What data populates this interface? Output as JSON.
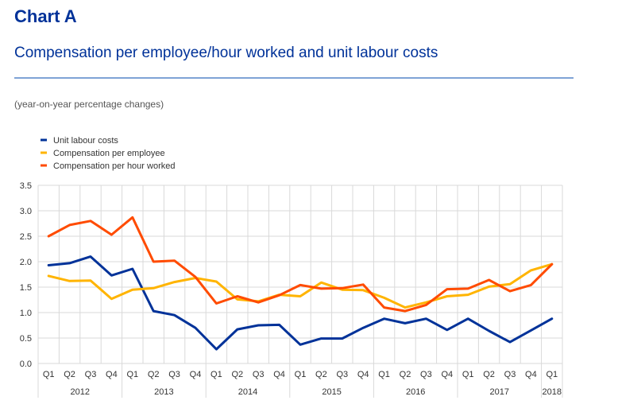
{
  "header": {
    "label": "Chart A",
    "title": "Compensation per employee/hour worked and unit labour costs",
    "units": "(year-on-year percentage changes)"
  },
  "colors": {
    "title": "#003299",
    "unit_labour_costs": "#003299",
    "compensation_per_employee": "#FFB400",
    "compensation_per_hour": "#FF4B00",
    "grid": "#d9d9d9"
  },
  "chart_data": {
    "type": "line",
    "title": "Compensation per employee/hour worked and unit labour costs",
    "xlabel": "",
    "ylabel": "(year-on-year percentage changes)",
    "ylim": [
      0.0,
      3.5
    ],
    "yticks": [
      "0.0",
      "0.5",
      "1.0",
      "1.5",
      "2.0",
      "2.5",
      "3.0",
      "3.5"
    ],
    "grid": true,
    "legend_position": "top-left",
    "categories": [
      "Q1",
      "Q2",
      "Q3",
      "Q4",
      "Q1",
      "Q2",
      "Q3",
      "Q4",
      "Q1",
      "Q2",
      "Q3",
      "Q4",
      "Q1",
      "Q2",
      "Q3",
      "Q4",
      "Q1",
      "Q2",
      "Q3",
      "Q4",
      "Q1",
      "Q2",
      "Q3",
      "Q4",
      "Q1"
    ],
    "years": [
      {
        "label": "2012",
        "quarters": 4
      },
      {
        "label": "2013",
        "quarters": 4
      },
      {
        "label": "2014",
        "quarters": 4
      },
      {
        "label": "2015",
        "quarters": 4
      },
      {
        "label": "2016",
        "quarters": 4
      },
      {
        "label": "2017",
        "quarters": 4
      },
      {
        "label": "2018",
        "quarters": 1
      }
    ],
    "series": [
      {
        "name": "Unit labour costs",
        "color": "#003299",
        "values": [
          1.93,
          1.97,
          2.1,
          1.73,
          1.86,
          1.03,
          0.95,
          0.7,
          0.28,
          0.67,
          0.75,
          0.76,
          0.37,
          0.49,
          0.49,
          0.7,
          0.88,
          0.79,
          0.88,
          0.66,
          0.88,
          0.64,
          0.42,
          0.65,
          0.88
        ]
      },
      {
        "name": "Compensation per employee",
        "color": "#FFB400",
        "values": [
          1.72,
          1.62,
          1.63,
          1.27,
          1.45,
          1.48,
          1.6,
          1.68,
          1.61,
          1.26,
          1.22,
          1.35,
          1.32,
          1.59,
          1.45,
          1.44,
          1.29,
          1.1,
          1.2,
          1.32,
          1.35,
          1.51,
          1.56,
          1.83,
          1.95
        ]
      },
      {
        "name": "Compensation per hour worked",
        "color": "#FF4B00",
        "values": [
          2.5,
          2.72,
          2.8,
          2.53,
          2.87,
          2.0,
          2.02,
          1.7,
          1.18,
          1.32,
          1.2,
          1.34,
          1.54,
          1.47,
          1.48,
          1.55,
          1.1,
          1.03,
          1.15,
          1.46,
          1.47,
          1.64,
          1.42,
          1.54,
          1.95
        ]
      }
    ]
  }
}
